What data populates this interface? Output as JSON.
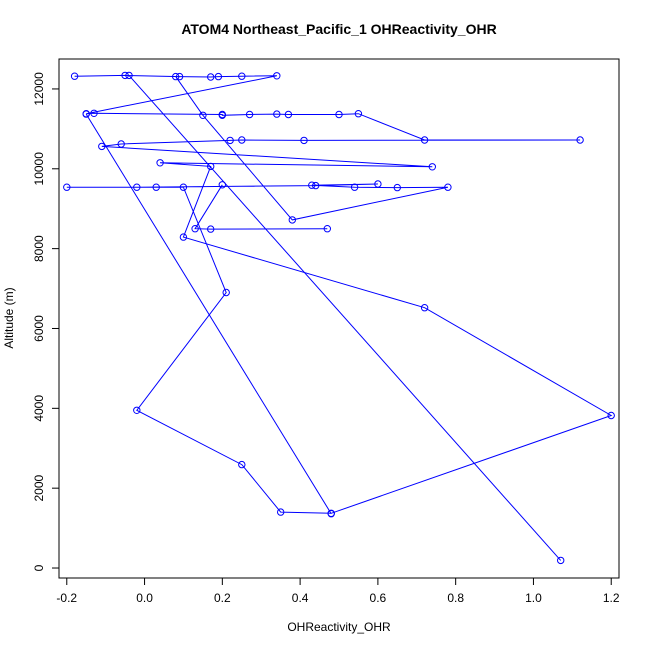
{
  "chart_data": {
    "type": "line",
    "title": "ATOM4 Northeast_Pacific_1 OHReactivity_OHR",
    "xlabel": "OHReactivity_OHR",
    "ylabel": "Altitude (m)",
    "xlim": [
      -0.22,
      1.22
    ],
    "ylim": [
      -250,
      12750
    ],
    "xticks": [
      -0.2,
      0.0,
      0.2,
      0.4,
      0.6,
      0.8,
      1.0,
      1.2
    ],
    "xtick_labels": [
      "-0.2",
      "0.0",
      "0.2",
      "0.4",
      "0.6",
      "0.8",
      "1.0",
      "1.2"
    ],
    "yticks": [
      0,
      2000,
      4000,
      6000,
      8000,
      10000,
      12000
    ],
    "ytick_labels": [
      "0",
      "2000",
      "4000",
      "6000",
      "8000",
      "10000",
      "12000"
    ],
    "grid": false,
    "color": "#0000ff",
    "series": [
      {
        "points": [
          [
            -0.18,
            12320
          ],
          [
            -0.05,
            12340
          ],
          [
            0.09,
            12310
          ],
          [
            0.17,
            12300
          ],
          [
            0.19,
            12310
          ],
          [
            0.25,
            12320
          ],
          [
            0.34,
            12330
          ],
          [
            -0.15,
            11380
          ],
          [
            -0.13,
            11390
          ],
          [
            0.2,
            11360
          ],
          [
            0.2,
            11340
          ],
          [
            0.27,
            11360
          ],
          [
            0.34,
            11370
          ],
          [
            0.37,
            11360
          ],
          [
            0.5,
            11360
          ],
          [
            0.55,
            11380
          ],
          [
            0.72,
            10720
          ],
          [
            1.12,
            10720
          ],
          [
            0.41,
            10710
          ],
          [
            0.25,
            10720
          ],
          [
            0.22,
            10710
          ],
          [
            -0.06,
            10620
          ],
          [
            -0.11,
            10560
          ],
          [
            0.74,
            10050
          ],
          [
            0.04,
            10150
          ],
          [
            0.17,
            10060
          ],
          [
            0.1,
            8290
          ],
          [
            0.72,
            6520
          ],
          [
            1.2,
            3820
          ],
          [
            0.48,
            1370
          ],
          [
            0.35,
            1400
          ],
          [
            0.25,
            2590
          ],
          [
            -0.02,
            3950
          ],
          [
            0.21,
            6900
          ],
          [
            0.1,
            9540
          ],
          [
            0.03,
            9540
          ],
          [
            -0.2,
            9540
          ],
          [
            -0.02,
            9540
          ],
          [
            0.44,
            9580
          ],
          [
            0.6,
            9620
          ],
          [
            0.43,
            9590
          ],
          [
            0.54,
            9540
          ],
          [
            0.65,
            9530
          ],
          [
            0.78,
            9540
          ],
          [
            0.38,
            8720
          ],
          [
            0.15,
            11340
          ],
          [
            0.08,
            12310
          ]
        ]
      },
      {
        "points": [
          [
            -0.04,
            12340
          ],
          [
            1.07,
            190
          ]
        ]
      },
      {
        "points": [
          [
            -0.15,
            11370
          ],
          [
            0.48,
            1360
          ]
        ]
      },
      {
        "points": [
          [
            0.47,
            8500
          ],
          [
            0.17,
            8490
          ],
          [
            0.13,
            8500
          ],
          [
            0.2,
            9600
          ]
        ]
      }
    ]
  }
}
